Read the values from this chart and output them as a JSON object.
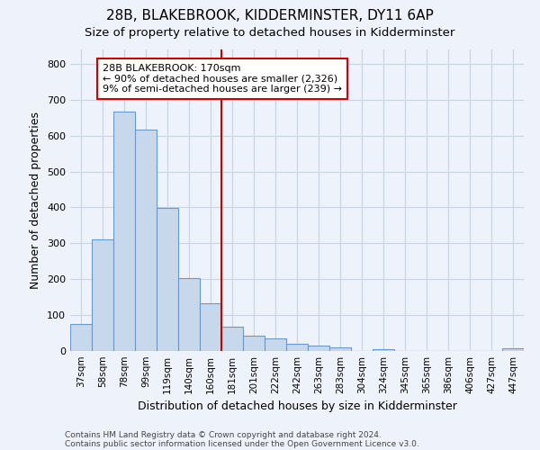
{
  "title1": "28B, BLAKEBROOK, KIDDERMINSTER, DY11 6AP",
  "title2": "Size of property relative to detached houses in Kidderminster",
  "xlabel": "Distribution of detached houses by size in Kidderminster",
  "ylabel": "Number of detached properties",
  "categories": [
    "37sqm",
    "58sqm",
    "78sqm",
    "99sqm",
    "119sqm",
    "140sqm",
    "160sqm",
    "181sqm",
    "201sqm",
    "222sqm",
    "242sqm",
    "263sqm",
    "283sqm",
    "304sqm",
    "324sqm",
    "345sqm",
    "365sqm",
    "386sqm",
    "406sqm",
    "427sqm",
    "447sqm"
  ],
  "values": [
    76,
    312,
    667,
    616,
    398,
    204,
    133,
    68,
    42,
    35,
    20,
    16,
    11,
    0,
    6,
    0,
    0,
    0,
    0,
    0,
    7
  ],
  "bar_color": "#c8d8ec",
  "bar_edge_color": "#6699cc",
  "grid_color": "#c8d4e4",
  "background_color": "#eef2fa",
  "annotation_line1": "28B BLAKEBROOK: 170sqm",
  "annotation_line2": "← 90% of detached houses are smaller (2,326)",
  "annotation_line3": "9% of semi-detached houses are larger (239) →",
  "annotation_box_facecolor": "#ffffff",
  "annotation_box_edgecolor": "#cc0000",
  "vline_color": "#cc0000",
  "vline_pos": 6.5,
  "ylim": [
    0,
    840
  ],
  "yticks": [
    0,
    100,
    200,
    300,
    400,
    500,
    600,
    700,
    800
  ],
  "footer1": "Contains HM Land Registry data © Crown copyright and database right 2024.",
  "footer2": "Contains public sector information licensed under the Open Government Licence v3.0."
}
